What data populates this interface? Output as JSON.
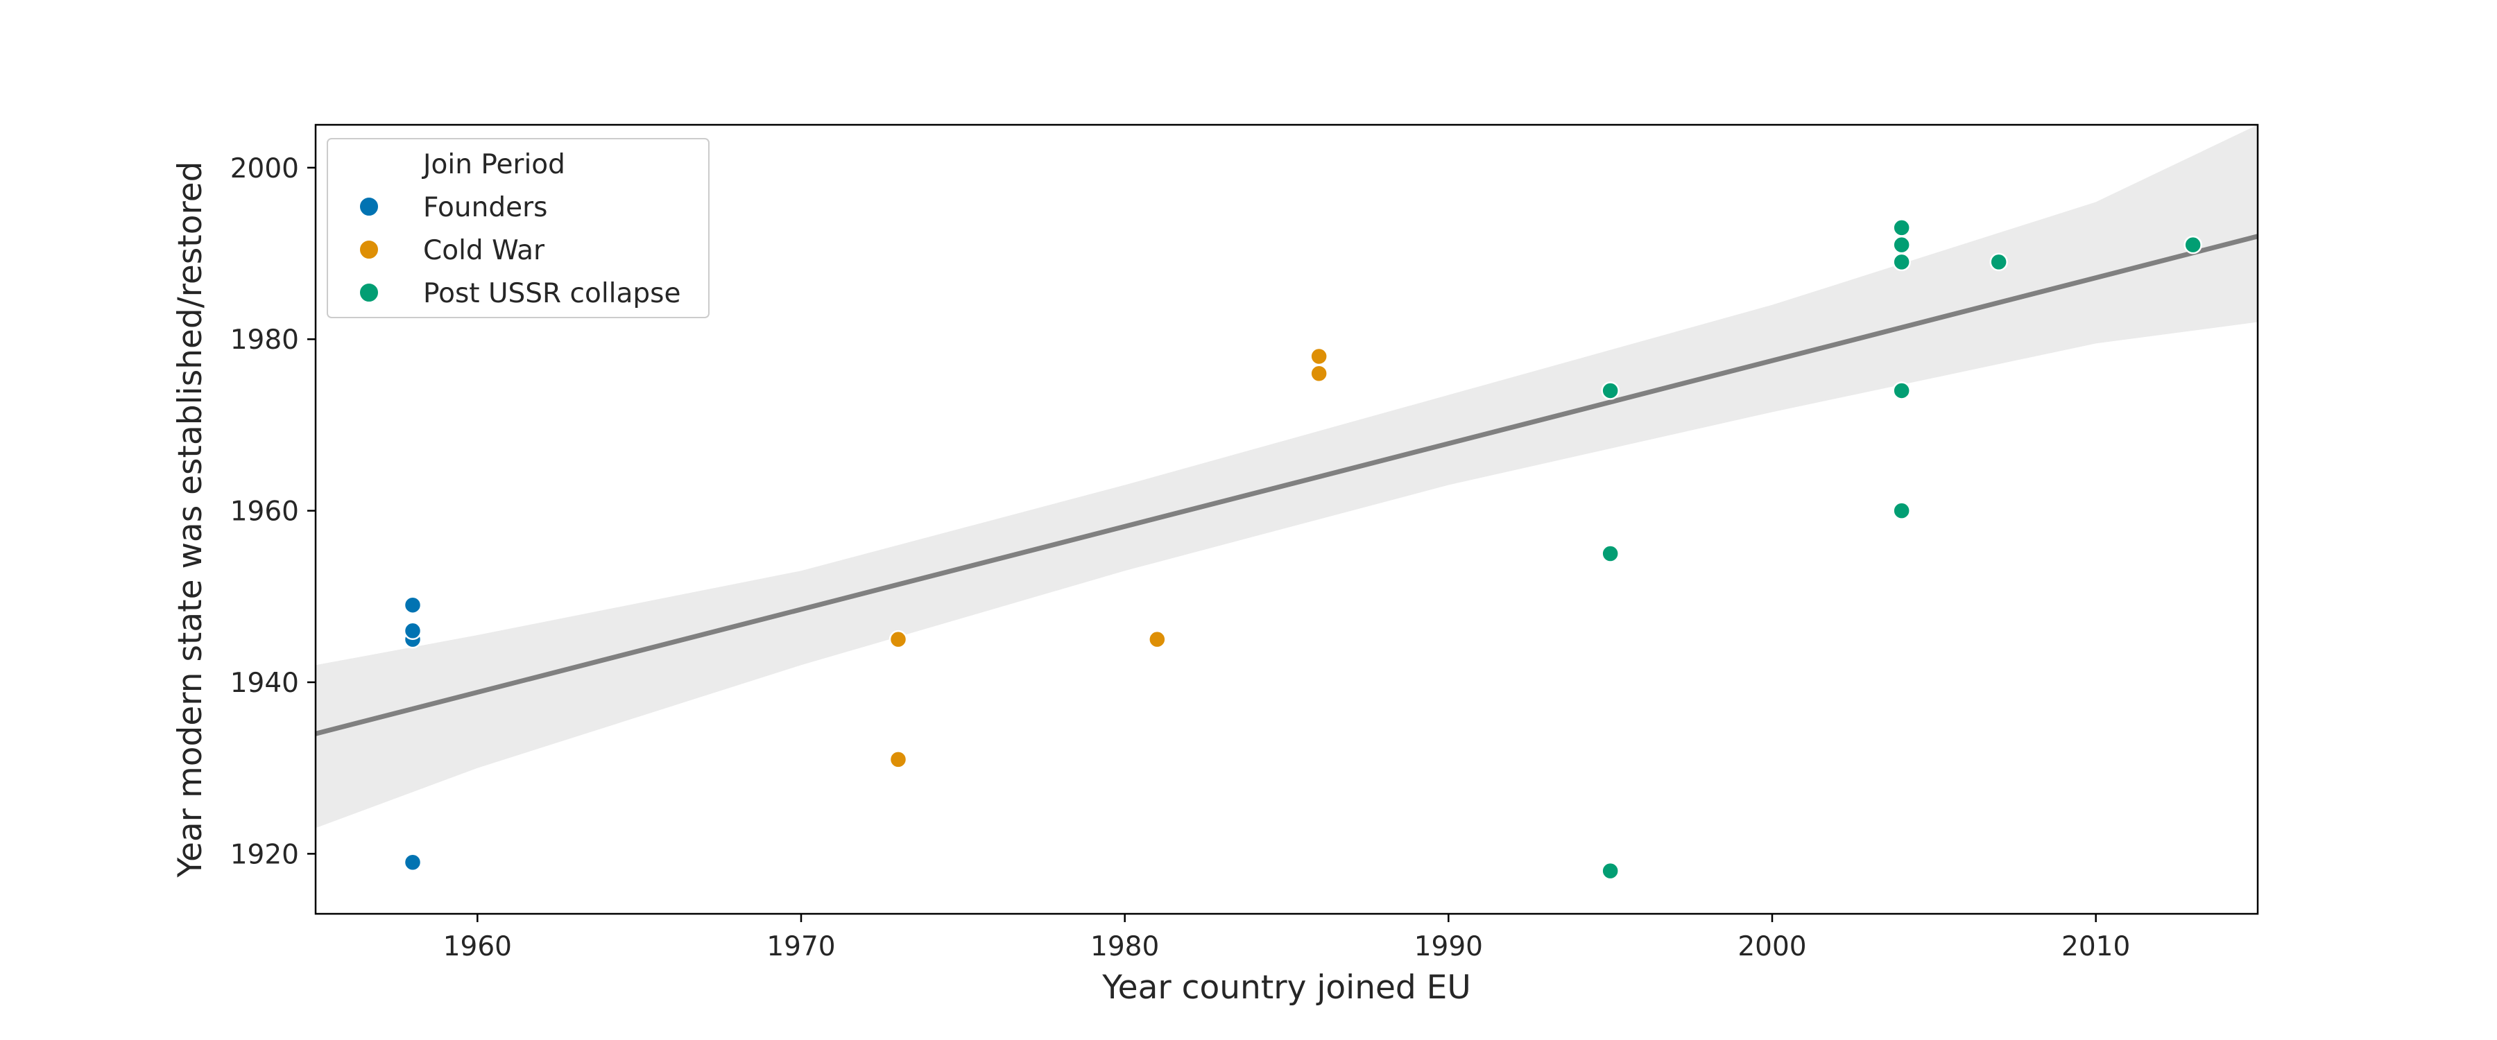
{
  "chart_data": {
    "type": "scatter",
    "xlabel": "Year country joined EU",
    "ylabel": "Year modern state was established/restored",
    "xlim": [
      1955,
      2015
    ],
    "ylim": [
      1913,
      2005
    ],
    "xticks": [
      1960,
      1970,
      1980,
      1990,
      2000,
      2010
    ],
    "yticks": [
      1920,
      1940,
      1960,
      1980,
      2000
    ],
    "grid": false,
    "legend": {
      "title": "Join Period",
      "placement": "top-left"
    },
    "series": [
      {
        "name": "Founders",
        "color": "#0173b2",
        "points": [
          {
            "x": 1958,
            "y": 1919
          },
          {
            "x": 1958,
            "y": 1945
          },
          {
            "x": 1958,
            "y": 1946
          },
          {
            "x": 1958,
            "y": 1949
          }
        ]
      },
      {
        "name": "Cold War",
        "color": "#de8f05",
        "points": [
          {
            "x": 1973,
            "y": 1931
          },
          {
            "x": 1973,
            "y": 1945
          },
          {
            "x": 1981,
            "y": 1945
          },
          {
            "x": 1986,
            "y": 1976
          },
          {
            "x": 1986,
            "y": 1978
          }
        ]
      },
      {
        "name": "Post USSR collapse",
        "color": "#029e73",
        "points": [
          {
            "x": 1995,
            "y": 1918
          },
          {
            "x": 1995,
            "y": 1955
          },
          {
            "x": 1995,
            "y": 1974
          },
          {
            "x": 2004,
            "y": 1960
          },
          {
            "x": 2004,
            "y": 1974
          },
          {
            "x": 2004,
            "y": 1989
          },
          {
            "x": 2004,
            "y": 1991
          },
          {
            "x": 2004,
            "y": 1993
          },
          {
            "x": 2007,
            "y": 1989
          },
          {
            "x": 2013,
            "y": 1991
          }
        ]
      }
    ],
    "regression": {
      "color": "#808080",
      "ci_color": "#ebebeb",
      "line": [
        [
          1955,
          1934
        ],
        [
          2015,
          1992
        ]
      ],
      "ci_upper": [
        [
          1955,
          1942
        ],
        [
          1960,
          1945.5
        ],
        [
          1970,
          1953
        ],
        [
          1980,
          1963
        ],
        [
          1990,
          1973.5
        ],
        [
          2000,
          1984
        ],
        [
          2010,
          1996
        ],
        [
          2015,
          2005
        ]
      ],
      "ci_lower": [
        [
          1955,
          1923
        ],
        [
          1960,
          1930
        ],
        [
          1970,
          1942
        ],
        [
          1980,
          1953
        ],
        [
          1990,
          1963
        ],
        [
          2000,
          1971.5
        ],
        [
          2010,
          1979.5
        ],
        [
          2015,
          1982
        ]
      ]
    }
  }
}
